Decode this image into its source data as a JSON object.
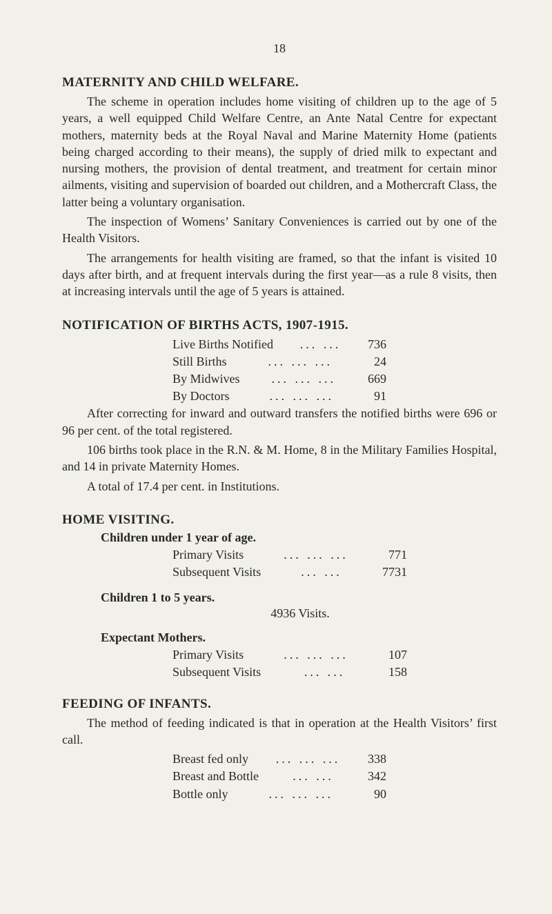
{
  "page_number": "18",
  "sections": {
    "maternity": {
      "heading": "MATERNITY AND CHILD WELFARE.",
      "paras": [
        "The scheme in operation includes home visiting of children up to the age of 5 years, a well equipped Child Welfare Centre, an Ante Natal Centre for expectant mothers, maternity beds at the Royal Naval and Marine Maternity Home (patients being charged according to their means), the supply of dried milk to expectant and nursing mothers, the provision of dental treatment, and treatment for certain minor ailments, visiting and supervision of boarded out children, and a Mothercraft Class, the latter being a voluntary organisation.",
        "The inspection of Womens’ Sanitary Conveniences is carried out by one of the Health Visitors.",
        "The arrangements for health visiting are framed, so that the infant is visited 10 days after birth, and at frequent intervals during the first year—as a rule 8 visits, then at increasing intervals until the age of 5 years is attained."
      ]
    },
    "notification": {
      "heading": "NOTIFICATION OF BIRTHS ACTS, 1907-1915.",
      "rows": [
        {
          "label": "Live Births Notified",
          "dots": "...   ...",
          "value": "736"
        },
        {
          "label": "Still Births",
          "dots": "...   ...   ...",
          "value": "24"
        },
        {
          "label": "By Midwives",
          "dots": "...   ...   ...",
          "value": "669"
        },
        {
          "label": "By Doctors",
          "dots": "...   ...   ...",
          "value": "91"
        }
      ],
      "after": [
        "After correcting for inward and outward transfers the notified births were 696 or 96 per cent. of the total registered.",
        "106 births took place in the R.N. & M. Home, 8 in the Military Families Hospital, and 14 in private Maternity Homes.",
        "A total of 17.4 per cent. in Institutions."
      ]
    },
    "home_visiting": {
      "heading": "HOME VISITING.",
      "sub_under1": "Children under 1 year of age.",
      "under1_rows": [
        {
          "label": "Primary Visits",
          "dots": "...   ...   ...",
          "value": "771"
        },
        {
          "label": "Subsequent Visits",
          "dots": "...   ...",
          "value": "7731"
        }
      ],
      "sub_1to5": "Children 1 to 5 years.",
      "visits_1to5": "4936 Visits.",
      "sub_expectant": "Expectant Mothers.",
      "expectant_rows": [
        {
          "label": "Primary Visits",
          "dots": "...   ...   ...",
          "value": "107"
        },
        {
          "label": "Subsequent Visits",
          "dots": "...   ...",
          "value": "158"
        }
      ]
    },
    "feeding": {
      "heading": "FEEDING OF INFANTS.",
      "intro": "The method of feeding indicated is that in operation at the Health Visitors’ first call.",
      "rows": [
        {
          "label": "Breast fed only",
          "dots": "...   ...   ...",
          "value": "338"
        },
        {
          "label": "Breast and Bottle",
          "dots": "...   ...",
          "value": "342"
        },
        {
          "label": "Bottle only",
          "dots": "...   ...   ...",
          "value": "90"
        }
      ]
    }
  }
}
